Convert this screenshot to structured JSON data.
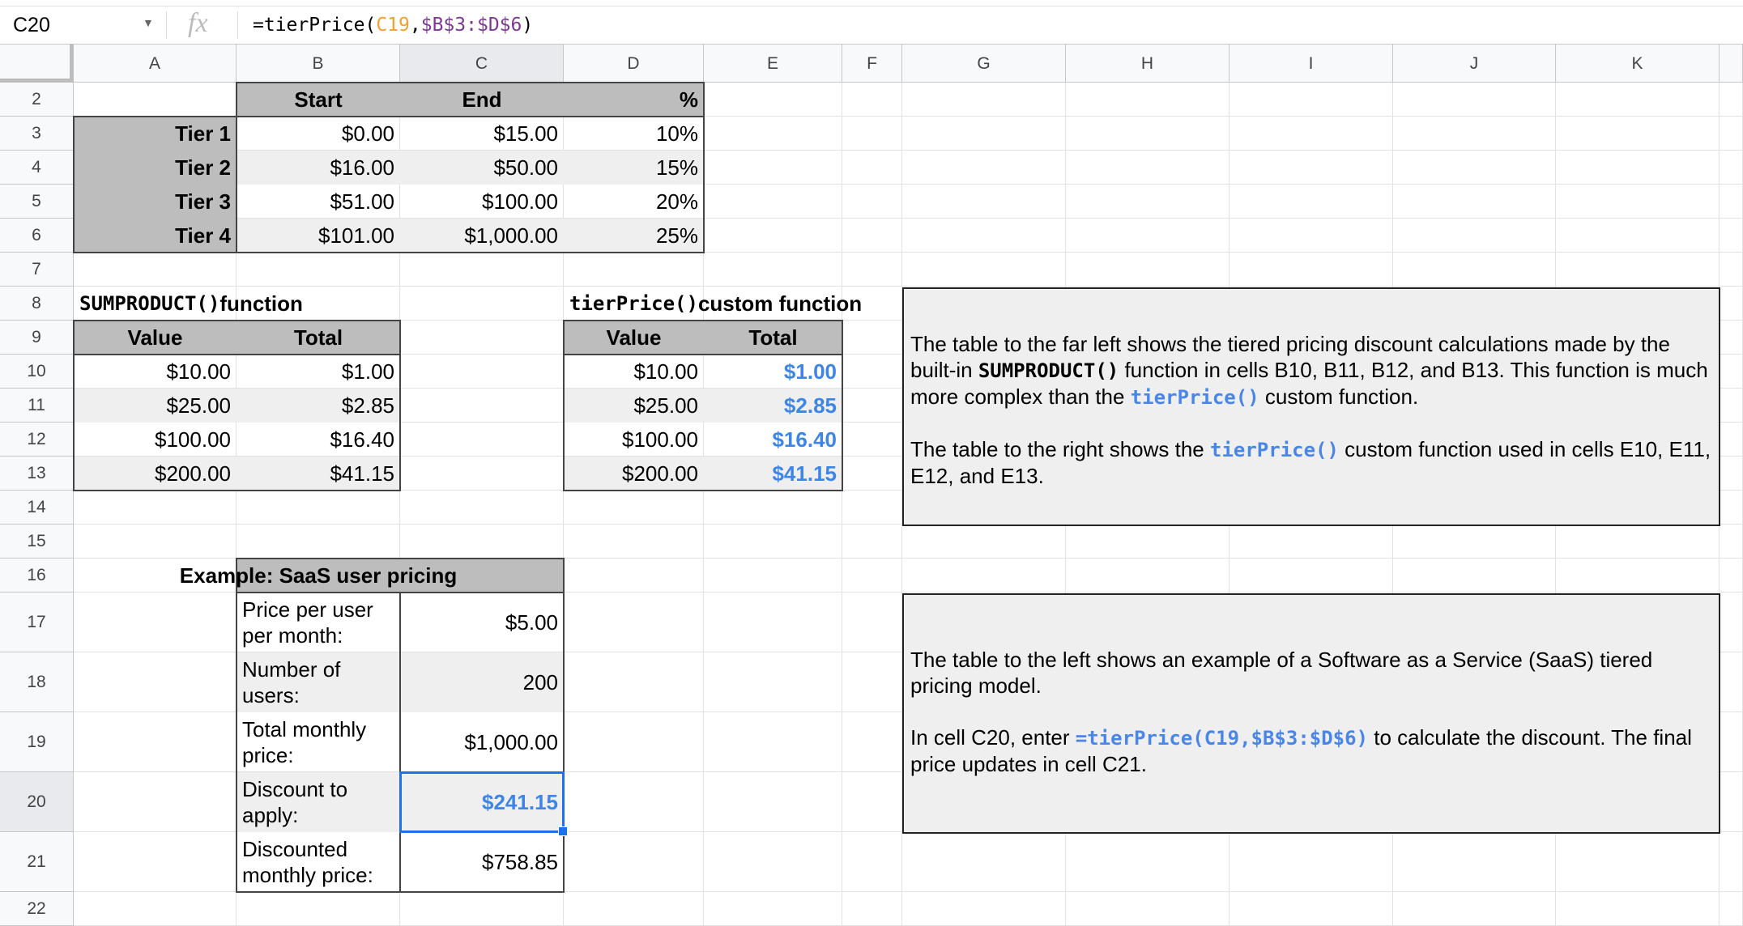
{
  "formula_bar": {
    "name_box": "C20",
    "fx_icon": "fx",
    "formula_prefix": "=tierPrice(",
    "formula_ref1": "C19",
    "formula_comma": ",",
    "formula_ref2": "$B$3:$D$6",
    "formula_suffix": ")"
  },
  "columns": [
    "A",
    "B",
    "C",
    "D",
    "E",
    "F",
    "G",
    "H",
    "I",
    "J",
    "K"
  ],
  "rows": [
    "2",
    "3",
    "4",
    "5",
    "6",
    "7",
    "8",
    "9",
    "10",
    "11",
    "12",
    "13",
    "14",
    "15",
    "16",
    "17",
    "18",
    "19",
    "20",
    "21",
    "22"
  ],
  "selected_cell": "C20",
  "colors": {
    "accent": "#1a73e8",
    "result_text": "#3d85e6",
    "header_fill": "#bdbdbd",
    "band_fill": "#efefef"
  },
  "cells": {
    "B2": "Start",
    "C2": "End",
    "D2": "%",
    "A3": "Tier 1",
    "B3": "$0.00",
    "C3": "$15.00",
    "D3": "10%",
    "A4": "Tier 2",
    "B4": "$16.00",
    "C4": "$50.00",
    "D4": "15%",
    "A5": "Tier 3",
    "B5": "$51.00",
    "C5": "$100.00",
    "D5": "20%",
    "A6": "Tier 4",
    "B6": "$101.00",
    "C6": "$1,000.00",
    "D6": "25%",
    "A9": "Value",
    "B9": "Total",
    "A10": "$10.00",
    "B10": "$1.00",
    "A11": "$25.00",
    "B11": "$2.85",
    "A12": "$100.00",
    "B12": "$16.40",
    "A13": "$200.00",
    "B13": "$41.15",
    "D9": "Value",
    "E9": "Total",
    "D10": "$10.00",
    "E10": "$1.00",
    "D11": "$25.00",
    "E11": "$2.85",
    "D12": "$100.00",
    "E12": "$16.40",
    "D13": "$200.00",
    "E13": "$41.15",
    "B16": "Example: SaaS user pricing",
    "B17": "Price per user per month:",
    "C17": "$5.00",
    "B18": "Number of users:",
    "C18": "200",
    "B19": "Total monthly price:",
    "C19": "$1,000.00",
    "B20": "Discount to apply:",
    "C20": "$241.15",
    "B21": "Discounted monthly price:",
    "C21": "$758.85"
  },
  "section_titles": {
    "sumproduct_code": "SUMPRODUCT()",
    "sumproduct_text": " function",
    "tierprice_code": "tierPrice()",
    "tierprice_text": " custom function"
  },
  "note1": {
    "p1_a": "The table to the far left shows the tiered pricing discount calculations made by the built-in ",
    "p1_code": "SUMPRODUCT()",
    "p1_b": " function in cells B10, B11, B12, and B13. This function is much more complex than the ",
    "p1_code2": "tierPrice()",
    "p1_c": " custom function.",
    "p2_a": "The table to the right shows the ",
    "p2_code": "tierPrice()",
    "p2_b": " custom function used in cells E10, E11, E12, and E13."
  },
  "note2": {
    "p1": "The table to the left shows an example of a Software as a Service (SaaS) tiered pricing model.",
    "p2_a": "In cell C20, enter ",
    "p2_code": "=tierPrice(C19,$B$3:$D$6)",
    "p2_b": " to calculate the discount. The final price updates in cell C21."
  }
}
